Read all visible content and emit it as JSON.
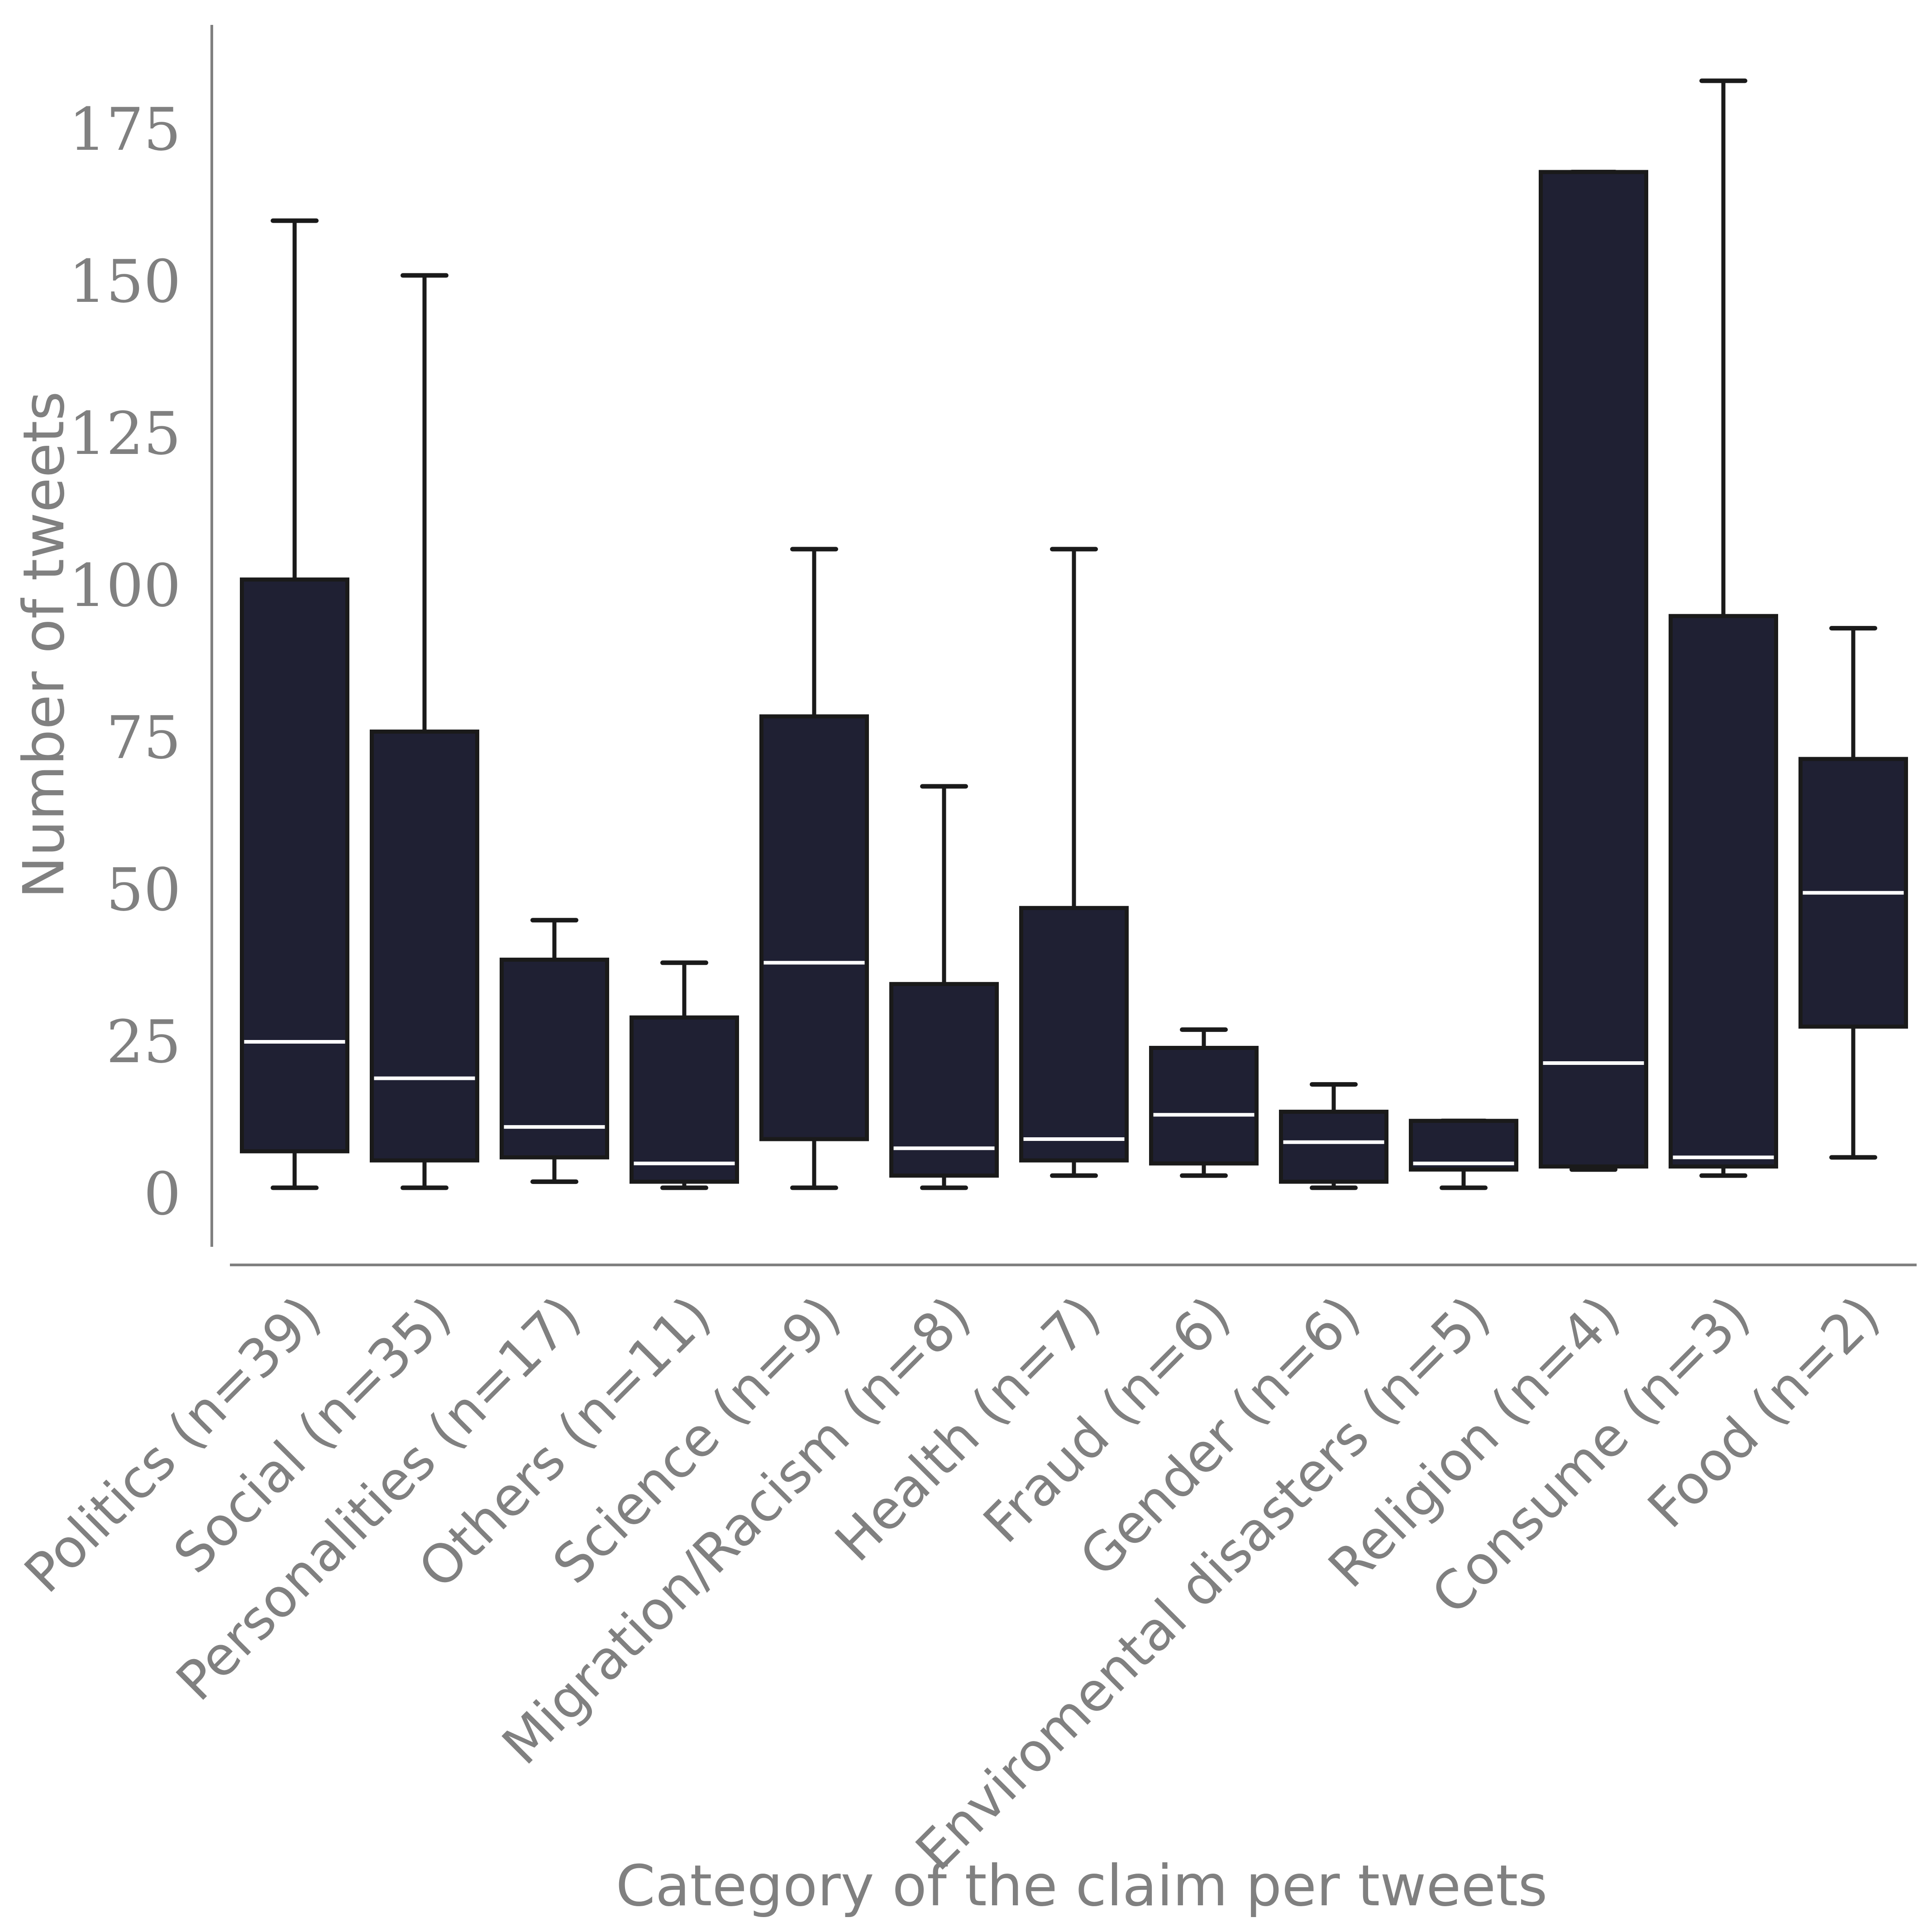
{
  "chart_data": {
    "type": "boxplot",
    "xlabel": "Category of the claim per tweets",
    "ylabel": "Number of tweets",
    "ylim": [
      -9,
      193
    ],
    "yticks": [
      0,
      25,
      50,
      75,
      100,
      125,
      150,
      175
    ],
    "grid": false,
    "box_color": "#1f2033",
    "edge_color": "#1a1a1a",
    "median_color": "#ffffff",
    "axis_color": "#808080",
    "categories": [
      "Politics (n=39)",
      "Social (n=35)",
      "Personalities (n=17)",
      "Others (n=11)",
      "Science (n=9)",
      "Migration/Racism (n=8)",
      "Health (n=7)",
      "Fraud (n=6)",
      "Gender (n=6)",
      "Enviromental disasters (n=5)",
      "Religion (n=4)",
      "Consume (n=3)",
      "Food (n=2)"
    ],
    "boxes": [
      {
        "whisker_low": 1,
        "q1": 7,
        "median": 25,
        "q3": 101,
        "whisker_high": 160
      },
      {
        "whisker_low": 1,
        "q1": 5.5,
        "median": 19,
        "q3": 76,
        "whisker_high": 151
      },
      {
        "whisker_low": 2,
        "q1": 6,
        "median": 11,
        "q3": 38.5,
        "whisker_high": 45
      },
      {
        "whisker_low": 1,
        "q1": 2,
        "median": 5,
        "q3": 29,
        "whisker_high": 38
      },
      {
        "whisker_low": 1,
        "q1": 9,
        "median": 38,
        "q3": 78.5,
        "whisker_high": 106
      },
      {
        "whisker_low": 1,
        "q1": 3,
        "median": 7.5,
        "q3": 34.5,
        "whisker_high": 67
      },
      {
        "whisker_low": 3,
        "q1": 5.5,
        "median": 9,
        "q3": 47,
        "whisker_high": 106
      },
      {
        "whisker_low": 3,
        "q1": 5,
        "median": 13,
        "q3": 24,
        "whisker_high": 27
      },
      {
        "whisker_low": 1,
        "q1": 2,
        "median": 8.5,
        "q3": 13.5,
        "whisker_high": 18
      },
      {
        "whisker_low": 1,
        "q1": 4,
        "median": 5,
        "q3": 12,
        "whisker_high": 12
      },
      {
        "whisker_low": 4,
        "q1": 4.5,
        "median": 21.5,
        "q3": 168,
        "whisker_high": 168
      },
      {
        "whisker_low": 3,
        "q1": 4.5,
        "median": 6,
        "q3": 95,
        "whisker_high": 183
      },
      {
        "whisker_low": 6,
        "q1": 27.5,
        "median": 49.5,
        "q3": 71.5,
        "whisker_high": 93
      }
    ]
  }
}
